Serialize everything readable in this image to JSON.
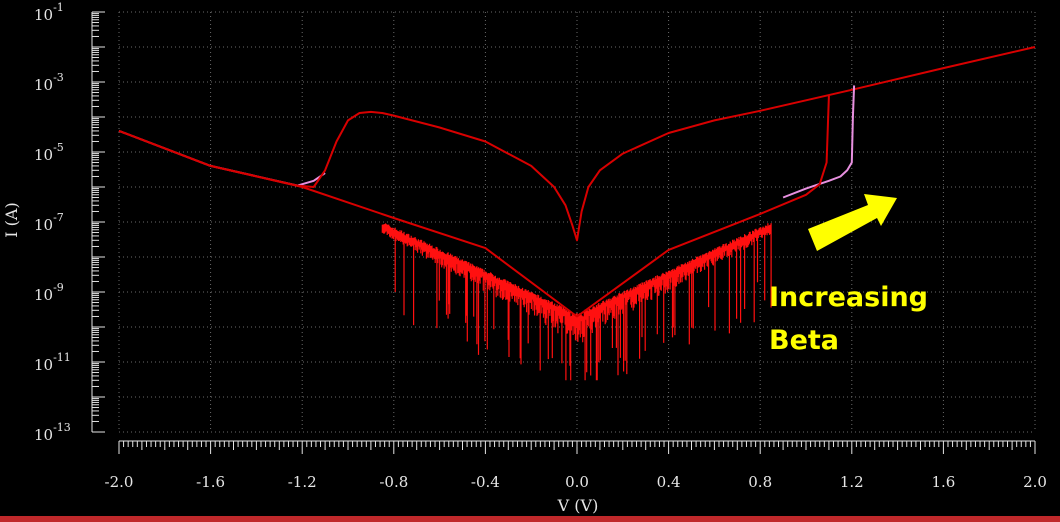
{
  "colors": {
    "series1": "#d80000",
    "series2": "#e890e0",
    "noise": "#ff1010",
    "annotation": "#ffff00"
  },
  "chart_data": {
    "type": "line",
    "xlabel": "V (V)",
    "ylabel": "I (A)",
    "xlim": [
      -2.0,
      2.0
    ],
    "ylim": [
      1e-13,
      0.1
    ],
    "yscale": "log",
    "grid": true,
    "x_ticks": [
      "-2.0",
      "-1.6",
      "-1.2",
      "-0.8",
      "-0.4",
      "0.0",
      "0.4",
      "0.8",
      "1.2",
      "1.6",
      "2.0"
    ],
    "y_ticks": [
      {
        "base": "10",
        "exp": "-1"
      },
      {
        "base": "10",
        "exp": "-3"
      },
      {
        "base": "10",
        "exp": "-5"
      },
      {
        "base": "10",
        "exp": "-7"
      },
      {
        "base": "10",
        "exp": "-9"
      },
      {
        "base": "10",
        "exp": "-11"
      },
      {
        "base": "10",
        "exp": "-13"
      }
    ],
    "annotation": {
      "line1": "Increasing",
      "line2": "Beta",
      "arrow": "right-up arrow"
    },
    "series": [
      {
        "color": "#e890e0",
        "x": [
          -2.0,
          -1.6,
          -1.22,
          -1.15,
          -1.1
        ],
        "y": [
          4e-05,
          4e-06,
          1.1e-06,
          1.5e-06,
          2.5e-06
        ]
      },
      {
        "color": "#d80000",
        "x": [
          -2.0,
          -1.6,
          -1.22,
          -1.15,
          -1.1,
          -1.05,
          -1.0,
          -0.95,
          -0.9,
          -0.85,
          -0.8,
          -0.6,
          -0.4,
          -0.2,
          -0.1,
          -0.05,
          -0.02,
          0.0,
          0.02,
          0.05,
          0.1,
          0.2,
          0.4,
          0.6,
          0.8,
          1.0,
          1.2,
          1.6,
          2.0
        ],
        "y": [
          4e-05,
          4e-06,
          1.1e-06,
          1e-06,
          3e-06,
          2e-05,
          8e-05,
          0.00013,
          0.00014,
          0.00013,
          0.00011,
          5e-05,
          2e-05,
          4e-06,
          1e-06,
          3e-07,
          8e-08,
          3e-08,
          2e-07,
          1e-06,
          3e-06,
          9e-06,
          3.5e-05,
          8e-05,
          0.00015,
          0.0003,
          0.0006,
          0.0025,
          0.01
        ]
      },
      {
        "color": "#e890e0",
        "x": [
          0.9,
          1.0,
          1.1,
          1.15,
          1.18,
          1.2,
          1.205,
          1.21
        ],
        "y": [
          5e-07,
          9e-07,
          1.5e-06,
          2e-06,
          3e-06,
          5e-06,
          0.0001,
          0.0008
        ]
      },
      {
        "color": "#d80000",
        "x": [
          -2.0,
          -1.6,
          -1.2,
          -0.8,
          -0.4,
          0.0,
          0.4,
          0.8,
          1.0,
          1.06,
          1.09,
          1.1
        ],
        "y": [
          4e-05,
          4e-06,
          1e-06,
          1.3e-07,
          1.8e-08,
          2e-10,
          1.6e-08,
          1.7e-07,
          6e-07,
          1.2e-06,
          5e-06,
          0.0004
        ]
      }
    ]
  }
}
